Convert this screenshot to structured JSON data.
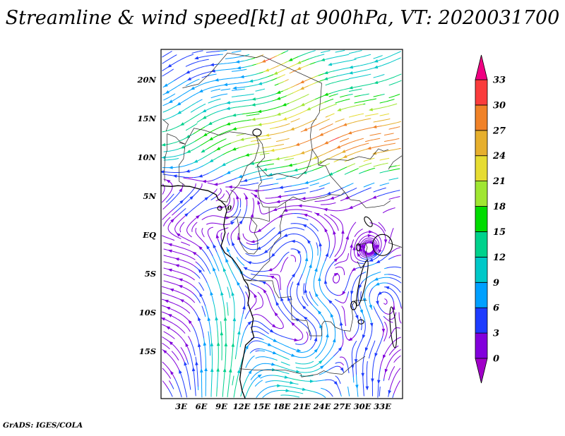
{
  "title": "Streamline & wind speed[kt] at 900hPa, VT: 2020031700",
  "footer": {
    "stamp": "GrADS: IGES/COLA"
  },
  "chart_data": {
    "type": "streamline-map",
    "title": "Streamline & wind speed[kt] at 900hPa, VT: 2020031700",
    "variable": "wind speed",
    "units": "kt",
    "level": "900hPa",
    "valid_time": "2020031700",
    "region": "Central Africa",
    "x_axis": {
      "labels": [
        "3E",
        "6E",
        "9E",
        "12E",
        "15E",
        "18E",
        "21E",
        "24E",
        "27E",
        "30E",
        "33E"
      ],
      "values": [
        3,
        6,
        9,
        12,
        15,
        18,
        21,
        24,
        27,
        30,
        33
      ]
    },
    "y_axis": {
      "labels": [
        "20N",
        "15N",
        "10N",
        "5N",
        "EQ",
        "5S",
        "10S",
        "15S"
      ],
      "values": [
        20,
        15,
        10,
        5,
        0,
        -5,
        -10,
        -15
      ]
    },
    "domain": {
      "lon": [
        0,
        36
      ],
      "lat": [
        -21.09,
        23.91
      ]
    },
    "colorbar": {
      "orientation": "vertical",
      "levels": [
        0,
        3,
        6,
        9,
        12,
        15,
        18,
        21,
        24,
        27,
        30,
        33
      ],
      "colors": [
        "#A000C8",
        "#8200DC",
        "#1E3CFF",
        "#00A0FF",
        "#00C8C8",
        "#00D28C",
        "#00DC00",
        "#A0E632",
        "#E6DC32",
        "#E6AF2D",
        "#F08228",
        "#FA3C3C",
        "#F00082"
      ]
    },
    "annotations": [
      {
        "text": "0",
        "lon": 10.2,
        "lat": 3.2
      }
    ],
    "flow": {
      "trade": {
        "lat_edge": 6.5,
        "edge_width": 2.5,
        "core_lat": 12.5,
        "core_width": 4.5,
        "base": 9,
        "core_amp": 15,
        "lon_floor": 0.85,
        "lon_amp": 0.35,
        "lon_center": 13,
        "lon_width": 7,
        "v_ratio": 0.28,
        "wave_amp": 3.5,
        "wave_kx": 0.35,
        "wave_ky": 0.2
      },
      "monsoon": {
        "u": 6,
        "v": 4,
        "lat_c": 5,
        "lat_w": 3,
        "lon_c": 6,
        "lon_w": 7
      },
      "coastal_jet": {
        "lon_c": 9.8,
        "lon_w": 3.2,
        "v": 13,
        "u": -1.5,
        "lat_peak": -10,
        "lat_w": 8
      },
      "southern_bg": {
        "u": -2.5,
        "v": 0.5,
        "lat_edge": -0.5,
        "edge_w": 2
      },
      "vortices": [
        [
          20,
          -2.5,
          2.8,
          8
        ],
        [
          25.5,
          -6,
          2.5,
          -7
        ],
        [
          14.5,
          -7.5,
          3,
          6
        ],
        [
          28.5,
          -11.5,
          2.5,
          -7
        ],
        [
          21.5,
          -15,
          3.5,
          9
        ],
        [
          31,
          -2.5,
          2,
          -5
        ],
        [
          26,
          -16.5,
          2.5,
          -6
        ],
        [
          17,
          -12,
          2.2,
          5
        ],
        [
          33,
          -8,
          2.2,
          6
        ],
        [
          10.5,
          3.0,
          1.8,
          4
        ],
        [
          19,
          -27,
          8,
          -16
        ]
      ],
      "speed_bumps": [
        [
          15.8,
          22.6,
          2.2,
          1.6,
          2.2
        ],
        [
          20.5,
          20.5,
          3.0,
          2.0,
          1.6
        ]
      ]
    },
    "geography": {
      "coastlines": [
        [
          [
            0,
            6.35
          ],
          [
            1.5,
            6.25
          ],
          [
            2.5,
            6.35
          ],
          [
            4.3,
            6.25
          ],
          [
            5.8,
            5.9
          ],
          [
            7.0,
            5.7
          ],
          [
            8.2,
            5.2
          ],
          [
            8.55,
            4.55
          ],
          [
            8.9,
            4.4
          ],
          [
            9.55,
            3.85
          ],
          [
            9.8,
            3.1
          ],
          [
            9.55,
            2.3
          ],
          [
            9.35,
            1.2
          ],
          [
            9.55,
            0.3
          ],
          [
            9.25,
            -0.6
          ],
          [
            8.95,
            -1.4
          ],
          [
            9.5,
            -2.3
          ],
          [
            10.6,
            -3.0
          ],
          [
            11.2,
            -3.7
          ],
          [
            11.85,
            -4.55
          ],
          [
            12.35,
            -5.75
          ],
          [
            12.9,
            -6.4
          ],
          [
            13.2,
            -7.6
          ],
          [
            12.95,
            -8.8
          ],
          [
            13.3,
            -9.7
          ],
          [
            13.75,
            -10.8
          ],
          [
            13.5,
            -12.1
          ],
          [
            13.85,
            -13.2
          ],
          [
            12.6,
            -14.2
          ],
          [
            12.3,
            -15.6
          ],
          [
            11.95,
            -17.2
          ],
          [
            11.75,
            -18.6
          ],
          [
            12.1,
            -20.1
          ],
          [
            12.55,
            -21.1
          ]
        ]
      ],
      "borders": [
        [
          [
            2.7,
            11.9
          ],
          [
            3.6,
            11.7
          ],
          [
            4.9,
            13.75
          ],
          [
            6.4,
            13.5
          ],
          [
            8.7,
            12.85
          ],
          [
            10.2,
            13.3
          ],
          [
            12.5,
            13.05
          ],
          [
            14.2,
            12.75
          ]
        ],
        [
          [
            3.2,
            18.95
          ],
          [
            5.6,
            19.45
          ],
          [
            7.4,
            20.9
          ],
          [
            9.9,
            23.45
          ],
          [
            14.2,
            22.85
          ],
          [
            15.0,
            23.1
          ]
        ],
        [
          [
            15.0,
            23.1
          ],
          [
            23.95,
            19.55
          ]
        ],
        [
          [
            23.95,
            19.55
          ],
          [
            23.6,
            15.75
          ],
          [
            22.45,
            14.2
          ],
          [
            22.25,
            12.75
          ],
          [
            22.55,
            11.0
          ],
          [
            23.4,
            9.9
          ],
          [
            23.45,
            9.0
          ]
        ],
        [
          [
            23.45,
            9.0
          ],
          [
            24.55,
            8.9
          ],
          [
            25.25,
            7.6
          ],
          [
            26.35,
            6.55
          ],
          [
            27.35,
            5.55
          ],
          [
            28.2,
            4.55
          ],
          [
            29.6,
            4.4
          ],
          [
            30.55,
            3.5
          ]
        ],
        [
          [
            30.55,
            3.5
          ],
          [
            31.8,
            3.6
          ],
          [
            33.2,
            3.8
          ],
          [
            34.2,
            4.4
          ]
        ],
        [
          [
            14.2,
            12.75
          ],
          [
            15.1,
            11.7
          ],
          [
            15.45,
            10.0
          ],
          [
            14.35,
            9.0
          ],
          [
            15.95,
            7.55
          ],
          [
            17.4,
            7.9
          ],
          [
            18.9,
            7.6
          ],
          [
            20.4,
            7.3
          ],
          [
            21.7,
            8.3
          ],
          [
            22.25,
            9.6
          ],
          [
            22.55,
            11.0
          ]
        ],
        [
          [
            14.2,
            12.75
          ],
          [
            14.6,
            11.5
          ],
          [
            13.95,
            9.65
          ],
          [
            12.8,
            8.85
          ],
          [
            12.25,
            7.65
          ],
          [
            11.55,
            6.45
          ],
          [
            10.6,
            5.65
          ],
          [
            10.15,
            4.9
          ],
          [
            9.8,
            4.25
          ],
          [
            8.9,
            4.4
          ]
        ],
        [
          [
            9.8,
            2.3
          ],
          [
            11.3,
            2.3
          ],
          [
            13.3,
            2.2
          ],
          [
            14.55,
            2.15
          ],
          [
            16.15,
            1.75
          ],
          [
            16.1,
            3.55
          ],
          [
            15.2,
            3.65
          ],
          [
            14.7,
            4.6
          ],
          [
            14.45,
            5.45
          ],
          [
            14.6,
            6.4
          ],
          [
            15.0,
            6.8
          ],
          [
            14.35,
            9.0
          ]
        ],
        [
          [
            16.1,
            3.55
          ],
          [
            17.4,
            3.6
          ],
          [
            18.55,
            4.25
          ],
          [
            19.7,
            4.9
          ],
          [
            21.3,
            4.3
          ],
          [
            22.9,
            4.6
          ],
          [
            24.4,
            4.9
          ],
          [
            25.3,
            5.2
          ],
          [
            26.8,
            5.1
          ],
          [
            27.35,
            5.55
          ]
        ],
        [
          [
            11.3,
            2.3
          ],
          [
            11.6,
            1.0
          ],
          [
            11.75,
            -0.9
          ],
          [
            12.4,
            -1.9
          ],
          [
            13.0,
            -2.4
          ],
          [
            13.85,
            -2.45
          ],
          [
            14.4,
            -1.9
          ],
          [
            14.4,
            -0.55
          ],
          [
            13.9,
            0.2
          ],
          [
            14.3,
            1.2
          ],
          [
            13.3,
            2.2
          ]
        ],
        [
          [
            18.55,
            4.25
          ],
          [
            18.6,
            3.4
          ],
          [
            18.1,
            2.7
          ],
          [
            17.75,
            1.2
          ],
          [
            17.85,
            -0.2
          ],
          [
            16.95,
            -1.0
          ],
          [
            16.2,
            -2.2
          ],
          [
            16.2,
            -3.3
          ],
          [
            15.3,
            -4.0
          ],
          [
            14.45,
            -4.9
          ],
          [
            13.4,
            -5.85
          ],
          [
            12.35,
            -5.75
          ]
        ],
        [
          [
            12.35,
            -5.75
          ],
          [
            13.1,
            -5.9
          ],
          [
            16.6,
            -5.9
          ],
          [
            16.95,
            -7.2
          ],
          [
            17.55,
            -8.1
          ],
          [
            19.35,
            -7.95
          ],
          [
            19.5,
            -10.9
          ],
          [
            21.75,
            -11.05
          ],
          [
            22.2,
            -13.0
          ],
          [
            23.95,
            -13.0
          ]
        ],
        [
          [
            23.95,
            -13.0
          ],
          [
            24.0,
            -11.5
          ],
          [
            24.35,
            -11.1
          ],
          [
            25.3,
            -11.2
          ],
          [
            26.0,
            -11.9
          ],
          [
            27.2,
            -12.3
          ],
          [
            28.2,
            -12.4
          ],
          [
            28.6,
            -10.7
          ],
          [
            28.4,
            -9.2
          ],
          [
            28.95,
            -8.45
          ],
          [
            30.7,
            -8.4
          ]
        ],
        [
          [
            11.75,
            -17.25
          ],
          [
            13.9,
            -17.4
          ],
          [
            18.4,
            -17.4
          ],
          [
            20.85,
            -17.9
          ],
          [
            20.95,
            -18.3
          ],
          [
            23.3,
            -17.95
          ],
          [
            24.25,
            -17.5
          ],
          [
            25.25,
            -17.8
          ],
          [
            27.0,
            -17.95
          ],
          [
            28.8,
            -16.6
          ],
          [
            30.4,
            -15.65
          ]
        ],
        [
          [
            29.1,
            -1.35
          ],
          [
            30.45,
            -1.05
          ],
          [
            30.75,
            -1.6
          ],
          [
            30.45,
            -2.4
          ],
          [
            30.8,
            -3.2
          ],
          [
            29.8,
            -4.3
          ],
          [
            29.25,
            -3.4
          ]
        ],
        [
          [
            33.9,
            -1.0
          ],
          [
            35.9,
            -1.6
          ]
        ],
        [
          [
            0.9,
            13.05
          ],
          [
            2.2,
            12.6
          ],
          [
            2.85,
            12.0
          ],
          [
            3.6,
            11.7
          ]
        ],
        [
          [
            0.75,
            13.35
          ],
          [
            1.1,
            14.25
          ],
          [
            0.2,
            14.95
          ]
        ],
        [
          [
            3.55,
            6.4
          ],
          [
            2.7,
            6.9
          ],
          [
            2.7,
            9.05
          ],
          [
            3.35,
            9.8
          ],
          [
            3.6,
            11.7
          ]
        ],
        [
          [
            0.55,
            6.9
          ],
          [
            0.5,
            8.4
          ],
          [
            0.6,
            10.0
          ],
          [
            0.9,
            10.95
          ],
          [
            0.9,
            13.05
          ]
        ],
        [
          [
            23.45,
            9.0
          ],
          [
            24.8,
            9.8
          ],
          [
            26.3,
            9.7
          ],
          [
            27.9,
            9.6
          ],
          [
            29.5,
            10.1
          ],
          [
            31.2,
            9.8
          ],
          [
            32.4,
            11.1
          ],
          [
            33.2,
            10.8
          ],
          [
            33.9,
            11.0
          ]
        ],
        [
          [
            33.9,
            8.45
          ],
          [
            34.6,
            9.4
          ],
          [
            35.9,
            10.2
          ]
        ]
      ],
      "lakes": [
        [
          33.0,
          -1.3,
          14,
          15,
          0
        ],
        [
          30.0,
          -6.2,
          4.5,
          33,
          12
        ],
        [
          34.6,
          -11.9,
          4,
          29,
          -5
        ],
        [
          30.9,
          1.7,
          4,
          8,
          -35
        ],
        [
          29.4,
          -1.6,
          3,
          5,
          0
        ],
        [
          28.7,
          -9.1,
          4,
          6,
          0
        ],
        [
          29.8,
          -11.2,
          4,
          3,
          0
        ],
        [
          14.3,
          13.2,
          6,
          5,
          0
        ],
        [
          8.75,
          3.45,
          3,
          3,
          0
        ]
      ]
    }
  }
}
